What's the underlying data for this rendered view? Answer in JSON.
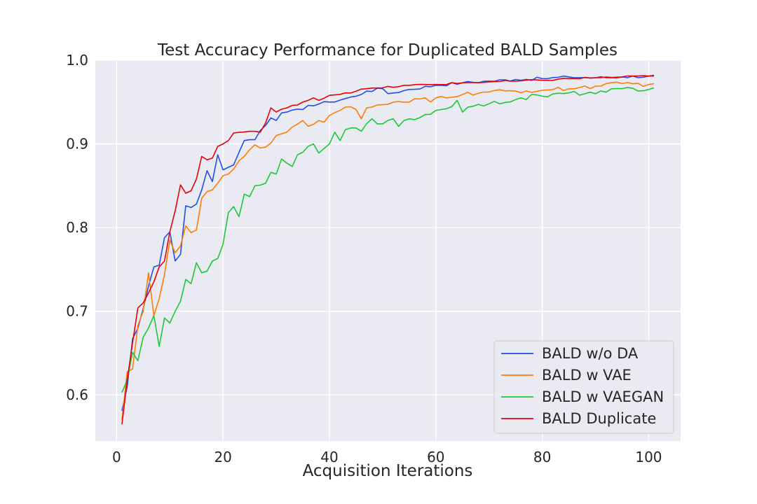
{
  "chart_data": {
    "type": "line",
    "title": "Test Accuracy Performance for Duplicated BALD Samples",
    "xlabel": "Acquisition Iterations",
    "ylabel": "",
    "xlim": [
      -4,
      106
    ],
    "ylim": [
      0.545,
      1.0
    ],
    "xticks": [
      0,
      20,
      40,
      60,
      80,
      100
    ],
    "yticks": [
      0.6,
      0.7,
      0.8,
      0.9,
      1.0
    ],
    "xtick_labels": [
      "0",
      "20",
      "40",
      "60",
      "80",
      "100"
    ],
    "ytick_labels": [
      "0.6",
      "0.7",
      "0.8",
      "0.9",
      "1.0"
    ],
    "grid": true,
    "legend_position": "lower-right",
    "background": "#eaeaf2",
    "series": [
      {
        "name": "BALD w/o DA",
        "color": "#1f4ee8",
        "anchors": [
          [
            1,
            0.581
          ],
          [
            2,
            0.61
          ],
          [
            3,
            0.667
          ],
          [
            4,
            0.68
          ],
          [
            5,
            0.703
          ],
          [
            6,
            0.73
          ],
          [
            7,
            0.753
          ],
          [
            8,
            0.755
          ],
          [
            9,
            0.788
          ],
          [
            10,
            0.795
          ],
          [
            11,
            0.76
          ],
          [
            12,
            0.768
          ],
          [
            13,
            0.826
          ],
          [
            14,
            0.824
          ],
          [
            15,
            0.828
          ],
          [
            16,
            0.845
          ],
          [
            17,
            0.868
          ],
          [
            18,
            0.855
          ],
          [
            19,
            0.887
          ],
          [
            20,
            0.869
          ],
          [
            21,
            0.872
          ],
          [
            22,
            0.875
          ],
          [
            23,
            0.89
          ],
          [
            24,
            0.904
          ],
          [
            25,
            0.905
          ],
          [
            26,
            0.905
          ],
          [
            27,
            0.916
          ],
          [
            28,
            0.922
          ],
          [
            29,
            0.931
          ],
          [
            30,
            0.928
          ],
          [
            31,
            0.937
          ],
          [
            32,
            0.938
          ],
          [
            35,
            0.941
          ],
          [
            36,
            0.946
          ],
          [
            40,
            0.95
          ],
          [
            45,
            0.957
          ],
          [
            47,
            0.963
          ],
          [
            50,
            0.966
          ],
          [
            51,
            0.96
          ],
          [
            55,
            0.965
          ],
          [
            60,
            0.97
          ],
          [
            65,
            0.973
          ],
          [
            70,
            0.975
          ],
          [
            75,
            0.977
          ],
          [
            80,
            0.978
          ],
          [
            85,
            0.98
          ],
          [
            90,
            0.979
          ],
          [
            95,
            0.98
          ],
          [
            100,
            0.981
          ],
          [
            101,
            0.981
          ]
        ],
        "noise": 0.0018
      },
      {
        "name": "BALD w VAE",
        "color": "#ff7c00",
        "anchors": [
          [
            1,
            0.57
          ],
          [
            2,
            0.628
          ],
          [
            3,
            0.631
          ],
          [
            4,
            0.683
          ],
          [
            5,
            0.7
          ],
          [
            6,
            0.746
          ],
          [
            7,
            0.695
          ],
          [
            8,
            0.715
          ],
          [
            9,
            0.744
          ],
          [
            10,
            0.785
          ],
          [
            11,
            0.77
          ],
          [
            12,
            0.778
          ],
          [
            13,
            0.802
          ],
          [
            14,
            0.794
          ],
          [
            15,
            0.797
          ],
          [
            16,
            0.835
          ],
          [
            17,
            0.843
          ],
          [
            18,
            0.845
          ],
          [
            19,
            0.853
          ],
          [
            20,
            0.862
          ],
          [
            21,
            0.864
          ],
          [
            22,
            0.87
          ],
          [
            23,
            0.88
          ],
          [
            24,
            0.885
          ],
          [
            25,
            0.893
          ],
          [
            26,
            0.899
          ],
          [
            27,
            0.895
          ],
          [
            28,
            0.896
          ],
          [
            29,
            0.901
          ],
          [
            30,
            0.91
          ],
          [
            31,
            0.912
          ],
          [
            33,
            0.92
          ],
          [
            35,
            0.928
          ],
          [
            36,
            0.921
          ],
          [
            38,
            0.928
          ],
          [
            39,
            0.926
          ],
          [
            40,
            0.934
          ],
          [
            42,
            0.94
          ],
          [
            43,
            0.944
          ],
          [
            45,
            0.941
          ],
          [
            46,
            0.93
          ],
          [
            47,
            0.943
          ],
          [
            50,
            0.947
          ],
          [
            55,
            0.95
          ],
          [
            58,
            0.955
          ],
          [
            59,
            0.95
          ],
          [
            60,
            0.955
          ],
          [
            65,
            0.959
          ],
          [
            70,
            0.962
          ],
          [
            75,
            0.963
          ],
          [
            80,
            0.964
          ],
          [
            85,
            0.966
          ],
          [
            90,
            0.969
          ],
          [
            95,
            0.972
          ],
          [
            100,
            0.971
          ],
          [
            101,
            0.972
          ]
        ],
        "noise": 0.0025
      },
      {
        "name": "BALD w VAEGAN",
        "color": "#1ac938",
        "anchors": [
          [
            1,
            0.603
          ],
          [
            2,
            0.618
          ],
          [
            3,
            0.651
          ],
          [
            4,
            0.641
          ],
          [
            5,
            0.669
          ],
          [
            6,
            0.68
          ],
          [
            7,
            0.695
          ],
          [
            8,
            0.658
          ],
          [
            9,
            0.692
          ],
          [
            10,
            0.686
          ],
          [
            11,
            0.7
          ],
          [
            12,
            0.712
          ],
          [
            13,
            0.738
          ],
          [
            14,
            0.733
          ],
          [
            15,
            0.758
          ],
          [
            16,
            0.746
          ],
          [
            17,
            0.748
          ],
          [
            18,
            0.76
          ],
          [
            19,
            0.763
          ],
          [
            20,
            0.78
          ],
          [
            21,
            0.818
          ],
          [
            22,
            0.825
          ],
          [
            23,
            0.813
          ],
          [
            24,
            0.84
          ],
          [
            25,
            0.837
          ],
          [
            26,
            0.85
          ],
          [
            28,
            0.853
          ],
          [
            29,
            0.866
          ],
          [
            30,
            0.864
          ],
          [
            31,
            0.882
          ],
          [
            32,
            0.877
          ],
          [
            33,
            0.873
          ],
          [
            34,
            0.887
          ],
          [
            35,
            0.89
          ],
          [
            37,
            0.9
          ],
          [
            38,
            0.889
          ],
          [
            40,
            0.9
          ],
          [
            41,
            0.914
          ],
          [
            42,
            0.904
          ],
          [
            43,
            0.917
          ],
          [
            45,
            0.919
          ],
          [
            46,
            0.915
          ],
          [
            48,
            0.93
          ],
          [
            49,
            0.924
          ],
          [
            50,
            0.924
          ],
          [
            52,
            0.93
          ],
          [
            53,
            0.921
          ],
          [
            55,
            0.93
          ],
          [
            56,
            0.929
          ],
          [
            58,
            0.935
          ],
          [
            60,
            0.94
          ],
          [
            62,
            0.942
          ],
          [
            64,
            0.952
          ],
          [
            65,
            0.938
          ],
          [
            67,
            0.945
          ],
          [
            70,
            0.948
          ],
          [
            75,
            0.953
          ],
          [
            77,
            0.953
          ],
          [
            78,
            0.959
          ],
          [
            80,
            0.957
          ],
          [
            85,
            0.961
          ],
          [
            90,
            0.96
          ],
          [
            95,
            0.966
          ],
          [
            100,
            0.965
          ],
          [
            101,
            0.967
          ]
        ],
        "noise": 0.0025
      },
      {
        "name": "BALD Duplicate",
        "color": "#e8000b",
        "anchors": [
          [
            1,
            0.565
          ],
          [
            2,
            0.618
          ],
          [
            3,
            0.662
          ],
          [
            4,
            0.704
          ],
          [
            5,
            0.71
          ],
          [
            6,
            0.722
          ],
          [
            7,
            0.735
          ],
          [
            8,
            0.753
          ],
          [
            9,
            0.76
          ],
          [
            10,
            0.795
          ],
          [
            11,
            0.82
          ],
          [
            12,
            0.851
          ],
          [
            13,
            0.841
          ],
          [
            14,
            0.844
          ],
          [
            15,
            0.858
          ],
          [
            16,
            0.885
          ],
          [
            17,
            0.881
          ],
          [
            18,
            0.883
          ],
          [
            19,
            0.897
          ],
          [
            20,
            0.9
          ],
          [
            21,
            0.904
          ],
          [
            22,
            0.913
          ],
          [
            25,
            0.915
          ],
          [
            27,
            0.914
          ],
          [
            28,
            0.925
          ],
          [
            29,
            0.943
          ],
          [
            30,
            0.938
          ],
          [
            32,
            0.943
          ],
          [
            35,
            0.95
          ],
          [
            37,
            0.955
          ],
          [
            38,
            0.952
          ],
          [
            40,
            0.958
          ],
          [
            45,
            0.963
          ],
          [
            47,
            0.966
          ],
          [
            50,
            0.967
          ],
          [
            55,
            0.97
          ],
          [
            60,
            0.971
          ],
          [
            65,
            0.973
          ],
          [
            70,
            0.974
          ],
          [
            75,
            0.975
          ],
          [
            80,
            0.976
          ],
          [
            85,
            0.978
          ],
          [
            90,
            0.979
          ],
          [
            95,
            0.98
          ],
          [
            100,
            0.981
          ],
          [
            101,
            0.982
          ]
        ],
        "noise": 0.0012
      }
    ]
  }
}
